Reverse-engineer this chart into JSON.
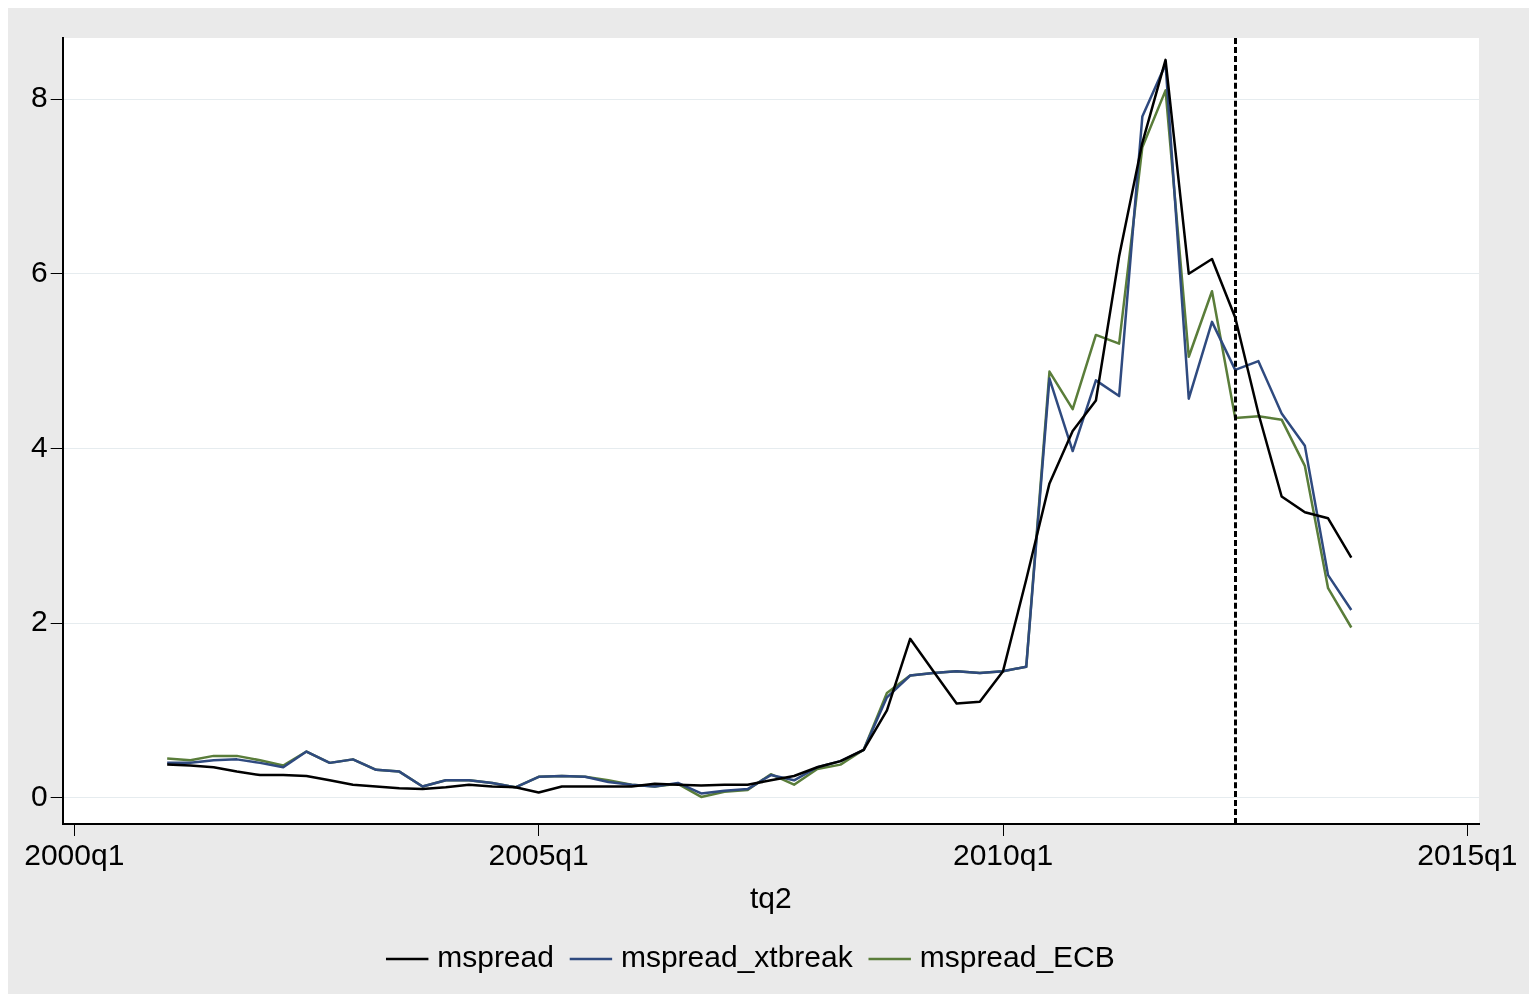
{
  "chart_data": {
    "type": "line",
    "xlabel": "tq2",
    "categories": [
      "2000q1",
      null,
      null,
      null,
      null,
      null,
      null,
      null,
      null,
      null,
      null,
      null,
      null,
      null,
      null,
      null,
      null,
      null,
      null,
      null,
      "2005q1",
      null,
      null,
      null,
      null,
      null,
      null,
      null,
      null,
      null,
      null,
      null,
      null,
      null,
      null,
      null,
      null,
      null,
      null,
      null,
      "2010q1",
      null,
      null,
      null,
      null,
      null,
      null,
      null,
      null,
      null,
      null,
      null,
      null,
      null,
      null,
      null,
      null,
      null,
      null,
      null,
      "2015q1"
    ],
    "series": [
      {
        "name": "mspread",
        "color": "#000000",
        "values": [
          null,
          null,
          null,
          null,
          0.38,
          0.37,
          0.35,
          0.3,
          0.26,
          0.26,
          0.25,
          0.2,
          0.15,
          0.13,
          0.11,
          0.1,
          0.12,
          0.15,
          0.13,
          0.12,
          0.06,
          0.13,
          0.13,
          0.13,
          0.13,
          0.16,
          0.15,
          0.14,
          0.15,
          0.15,
          0.2,
          0.25,
          0.35,
          0.42,
          0.55,
          1.0,
          1.82,
          1.45,
          1.08,
          1.1,
          1.45,
          2.5,
          3.6,
          4.2,
          4.55,
          6.2,
          7.5,
          8.45,
          6.0,
          6.17,
          5.5,
          4.4,
          3.45,
          3.27,
          3.2,
          2.75,
          null,
          null,
          null,
          null,
          null
        ]
      },
      {
        "name": "mspread_xtbreak",
        "color": "#2f4a7f",
        "values": [
          null,
          null,
          null,
          null,
          0.4,
          0.4,
          0.43,
          0.44,
          0.4,
          0.35,
          0.53,
          0.4,
          0.44,
          0.32,
          0.3,
          0.13,
          0.2,
          0.2,
          0.17,
          0.12,
          0.24,
          0.25,
          0.24,
          0.18,
          0.15,
          0.13,
          0.17,
          0.05,
          0.08,
          0.1,
          0.26,
          0.2,
          0.35,
          0.42,
          0.55,
          1.15,
          1.4,
          1.43,
          1.45,
          1.43,
          1.45,
          1.5,
          4.8,
          3.97,
          4.78,
          4.6,
          7.8,
          8.4,
          4.57,
          5.45,
          4.9,
          5.0,
          4.4,
          4.03,
          2.55,
          2.15,
          null,
          null,
          null,
          null,
          null
        ]
      },
      {
        "name": "mspread_ECB",
        "color": "#5a7d3a",
        "values": [
          null,
          null,
          null,
          null,
          0.45,
          0.43,
          0.48,
          0.48,
          0.43,
          0.37,
          0.53,
          0.4,
          0.44,
          0.32,
          0.3,
          0.13,
          0.2,
          0.2,
          0.17,
          0.12,
          0.24,
          0.25,
          0.24,
          0.2,
          0.15,
          0.13,
          0.16,
          0.01,
          0.07,
          0.09,
          0.27,
          0.15,
          0.33,
          0.38,
          0.55,
          1.2,
          1.4,
          1.43,
          1.45,
          1.43,
          1.45,
          1.5,
          4.88,
          4.45,
          5.3,
          5.2,
          7.45,
          8.1,
          5.05,
          5.8,
          4.35,
          4.37,
          4.33,
          3.8,
          2.4,
          1.95,
          null,
          null,
          null,
          null,
          null
        ]
      }
    ],
    "ylim": [
      -0.3,
      8.7
    ],
    "yticks": [
      0,
      2,
      4,
      6,
      8
    ],
    "grid": "y",
    "legend": "bottom",
    "marker": "none",
    "line_style": "solid"
  }
}
